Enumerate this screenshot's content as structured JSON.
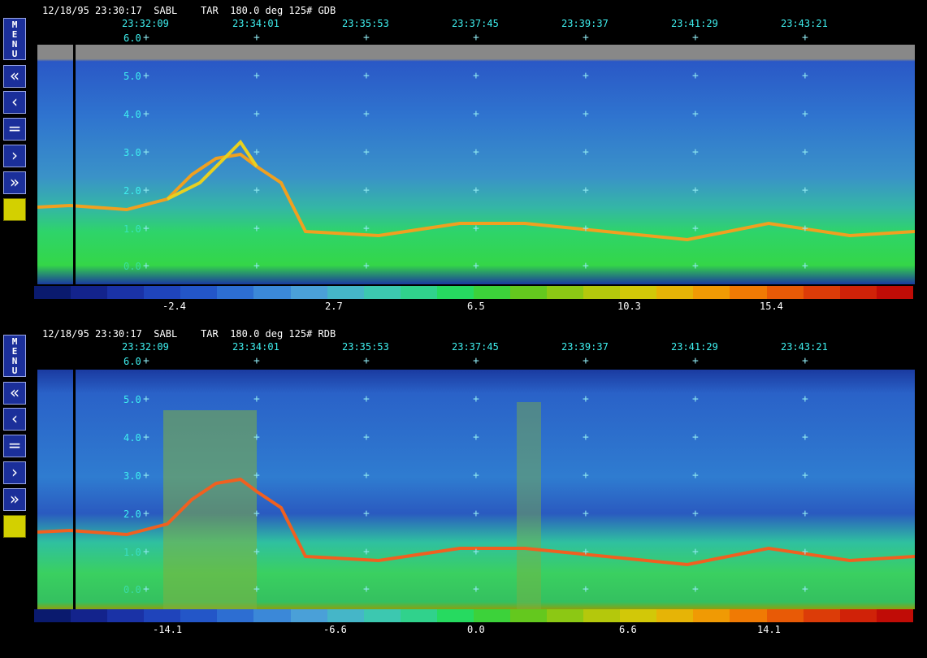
{
  "panels": [
    {
      "header": "12/18/95 23:30:17  SABL    TAR  180.0 deg 125# GDB",
      "colorbar_labels": [
        "-2.4",
        "2.7",
        "6.5",
        "10.3",
        "15.4"
      ],
      "colors": [
        "#0a1a6e",
        "#13238c",
        "#1a32a6",
        "#1f44bb",
        "#2356c8",
        "#2d6ed2",
        "#3b88d8",
        "#4aa0d8",
        "#45b6c8",
        "#3cc8b0",
        "#30d28c",
        "#26da60",
        "#3cd23a",
        "#64c81e",
        "#8cc814",
        "#b4c80c",
        "#d2c808",
        "#e6b406",
        "#f09a04",
        "#f07a04",
        "#e85a06",
        "#dc3c08",
        "#d02208",
        "#c00c06"
      ]
    },
    {
      "header": "12/18/95 23:30:17  SABL    TAR  180.0 deg 125# RDB",
      "colorbar_labels": [
        "-14.1",
        "-6.6",
        "0.0",
        "6.6",
        "14.1"
      ],
      "colors": [
        "#0a1a6e",
        "#13238c",
        "#1a32a6",
        "#1f44bb",
        "#2356c8",
        "#2d6ed2",
        "#3b88d8",
        "#4aa0d8",
        "#45b6c8",
        "#3cc8b0",
        "#30d28c",
        "#26da60",
        "#3cd23a",
        "#64c81e",
        "#8cc814",
        "#b4c80c",
        "#d2c808",
        "#e6b406",
        "#f09a04",
        "#f07a04",
        "#e85a06",
        "#dc3c08",
        "#d02208",
        "#c00c06"
      ]
    }
  ],
  "time_labels": [
    "23:32:09",
    "23:34:01",
    "23:35:53",
    "23:37:45",
    "23:39:37",
    "23:41:29",
    "23:43:21"
  ],
  "y_labels": [
    "6.0",
    "5.0",
    "4.0",
    "3.0",
    "2.0",
    "1.0",
    "0.0"
  ],
  "menu_label": [
    "M",
    "E",
    "N",
    "U"
  ],
  "nav_buttons": [
    "«",
    "‹",
    "=",
    "›",
    "»"
  ]
}
